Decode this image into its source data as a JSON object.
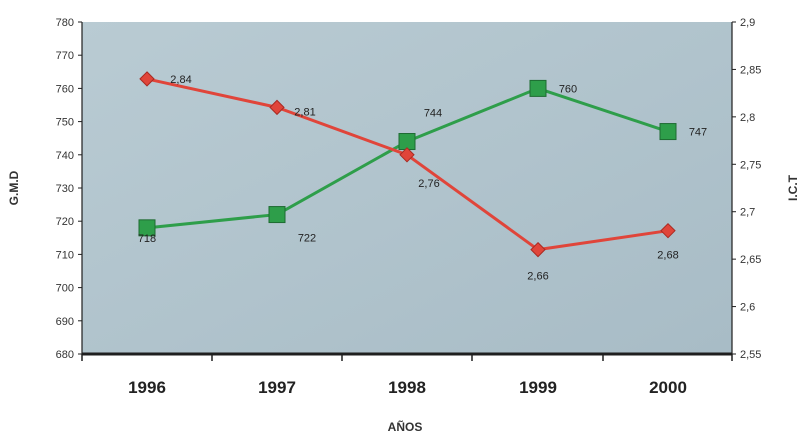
{
  "chart_data": {
    "type": "line",
    "categories": [
      "1996",
      "1997",
      "1998",
      "1999",
      "2000"
    ],
    "xlabel": "AÑOS",
    "ylabel_left": "G.M.D",
    "ylabel_right": "I.C.T",
    "ylim_left": [
      680,
      780
    ],
    "ylim_right": [
      2.55,
      2.9
    ],
    "yticks_left": [
      "680",
      "690",
      "700",
      "710",
      "720",
      "730",
      "740",
      "750",
      "760",
      "770",
      "780"
    ],
    "yticks_right": [
      "2,55",
      "2,6",
      "2,65",
      "2,7",
      "2,75",
      "2,8",
      "2,85",
      "2,9"
    ],
    "grid": false,
    "series": [
      {
        "axis": "left",
        "color": "#2e9e4a",
        "marker": "square",
        "values": [
          718,
          722,
          744,
          760,
          747
        ],
        "labels": [
          "718",
          "722",
          "744",
          "760",
          "747"
        ]
      },
      {
        "axis": "right",
        "color": "#e0453a",
        "marker": "diamond",
        "values": [
          2.84,
          2.81,
          2.76,
          2.66,
          2.68
        ],
        "labels": [
          "2,84",
          "2,81",
          "2,76",
          "2,66",
          "2,68"
        ]
      }
    ],
    "colors": {
      "plot_background": "#a8bcc6",
      "plot_background_light": "#b9cbd3",
      "axis": "#1f1f1f"
    }
  }
}
